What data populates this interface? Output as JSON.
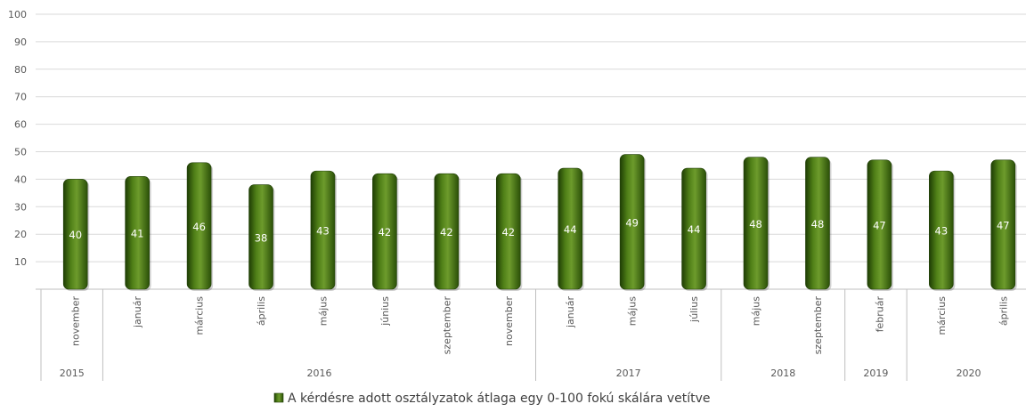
{
  "colors": {
    "bar": "#3f6b0f",
    "bar_dark": "#1e3d04",
    "bar_light": "#6d9b2c",
    "grid": "#d9d9d9",
    "axis": "#bfbfbf"
  },
  "chart_data": {
    "type": "bar",
    "ylim": [
      0,
      100
    ],
    "yticks": [
      10,
      20,
      30,
      40,
      50,
      60,
      70,
      80,
      90,
      100
    ],
    "grid": true,
    "legend_position": "bottom",
    "categories": [
      "november",
      "január",
      "március",
      "április",
      "május",
      "június",
      "szeptember",
      "november",
      "január",
      "május",
      "július",
      "május",
      "szeptember",
      "február",
      "március",
      "április"
    ],
    "year_groups": [
      {
        "label": "2015",
        "span": 1
      },
      {
        "label": "2016",
        "span": 7
      },
      {
        "label": "2017",
        "span": 3
      },
      {
        "label": "2018",
        "span": 2
      },
      {
        "label": "2019",
        "span": 1
      },
      {
        "label": "2020",
        "span": 2
      }
    ],
    "series": [
      {
        "name": "A kérdésre adott osztályzatok átlaga egy 0-100 fokú skálára vetítve",
        "values": [
          40,
          41,
          46,
          38,
          43,
          42,
          42,
          42,
          44,
          49,
          44,
          48,
          48,
          47,
          43,
          47
        ]
      }
    ]
  }
}
